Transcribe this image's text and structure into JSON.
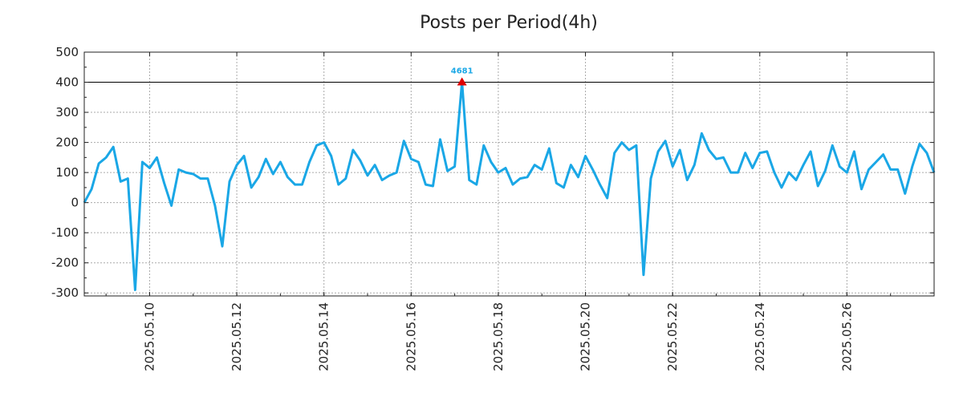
{
  "chart_data": {
    "type": "line",
    "title": "Posts per Period(4h)",
    "xlabel": "",
    "ylabel": "",
    "ylim": [
      -310,
      500
    ],
    "xlim": [
      "2025.05.08 12:00",
      "2025.05.28 00:00"
    ],
    "grid": true,
    "line_color": "#1aa7e6",
    "peak_color": "#e00000",
    "reference_line": {
      "y": 400,
      "color": "#000000"
    },
    "yticks": [
      "500",
      "400",
      "300",
      "200",
      "100",
      "0",
      "-100",
      "-200",
      "-300"
    ],
    "xticks": [
      "2025.05.10",
      "2025.05.12",
      "2025.05.14",
      "2025.05.16",
      "2025.05.18",
      "2025.05.20",
      "2025.05.22",
      "2025.05.24",
      "2025.05.26"
    ],
    "peak": {
      "x": "2025.05.17 04:00",
      "y": 400,
      "label": "4681"
    },
    "series": [
      {
        "x_start": "2025.05.08 12:00",
        "interval_hours": 4,
        "values": [
          0,
          45,
          130,
          150,
          185,
          70,
          80,
          -290,
          135,
          115,
          150,
          65,
          -10,
          110,
          100,
          95,
          80,
          80,
          -10,
          -145,
          70,
          125,
          155,
          50,
          85,
          145,
          95,
          135,
          85,
          60,
          60,
          135,
          190,
          200,
          155,
          60,
          80,
          175,
          140,
          90,
          125,
          75,
          90,
          100,
          205,
          145,
          135,
          60,
          55,
          210,
          105,
          120,
          400,
          75,
          60,
          190,
          135,
          100,
          115,
          60,
          80,
          85,
          125,
          110,
          180,
          65,
          50,
          125,
          85,
          155,
          110,
          60,
          15,
          165,
          200,
          175,
          190,
          -240,
          80,
          170,
          205,
          120,
          175,
          75,
          125,
          230,
          175,
          145,
          150,
          100,
          100,
          165,
          115,
          165,
          170,
          100,
          50,
          100,
          75,
          125,
          170,
          55,
          105,
          190,
          120,
          100,
          170,
          45,
          110,
          135,
          160,
          110,
          110,
          30,
          120,
          195,
          165,
          100
        ]
      }
    ]
  }
}
